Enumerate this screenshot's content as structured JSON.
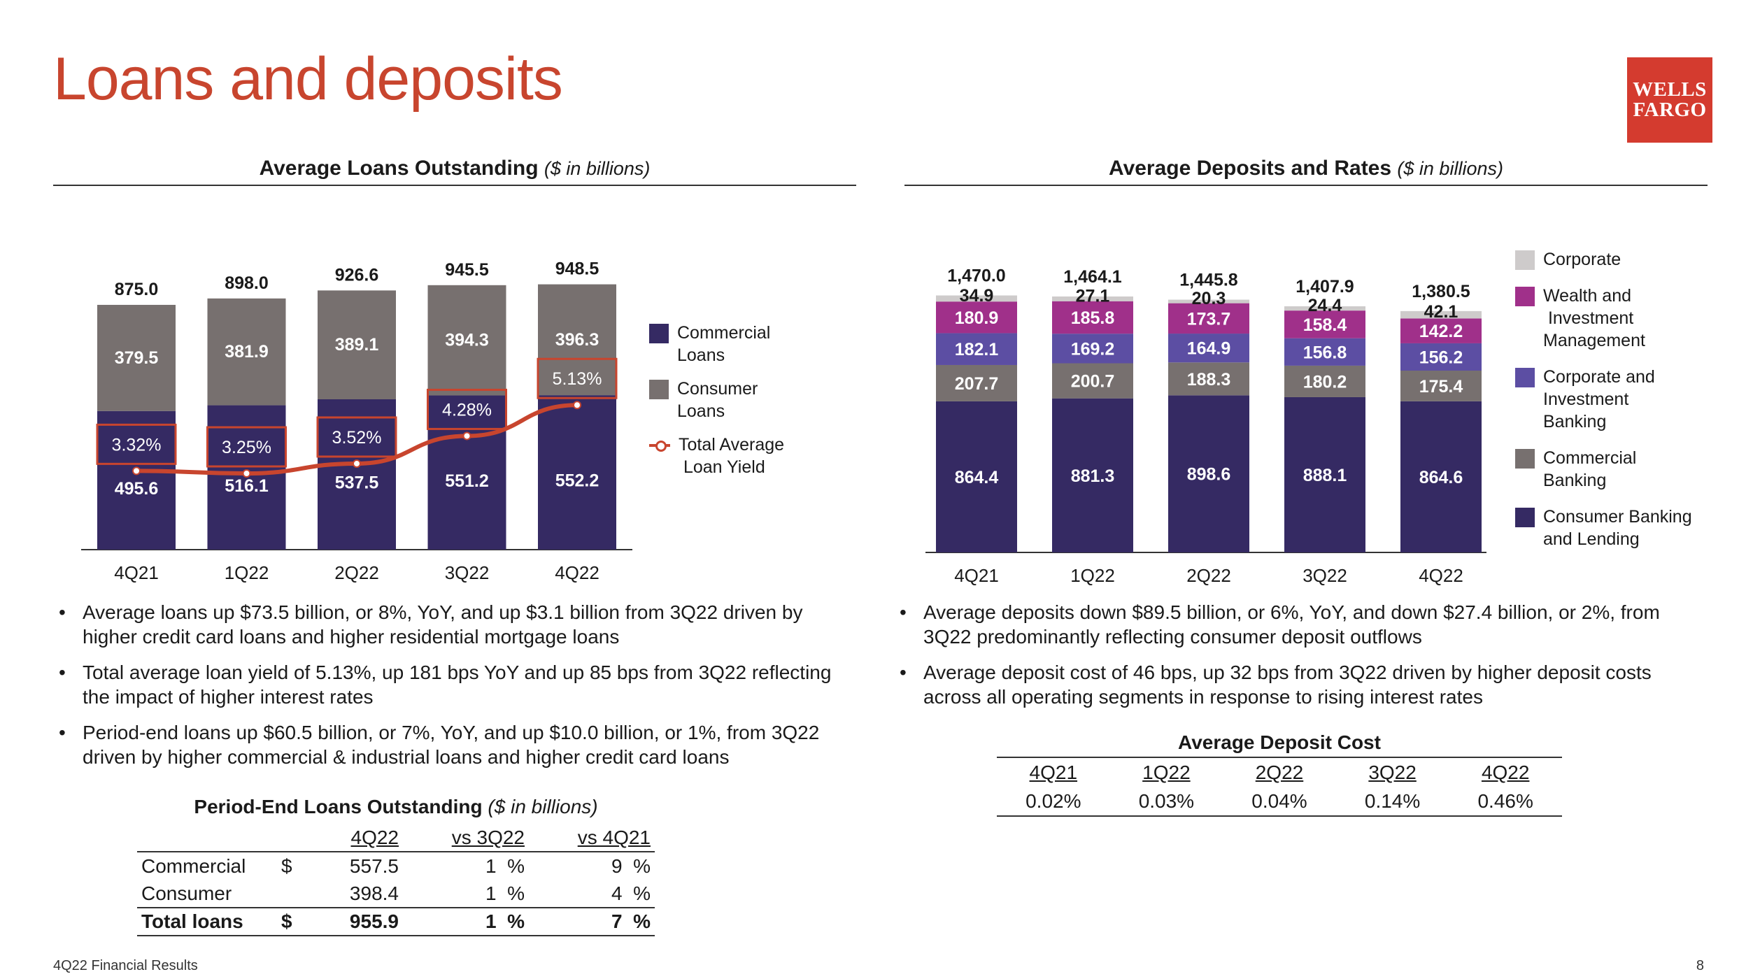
{
  "title": "Loans and deposits",
  "logo": {
    "line1": "WELLS",
    "line2": "FARGO"
  },
  "colors": {
    "accent": "#c8452e",
    "logo_red": "#d43b2f",
    "commercial": "#352a63",
    "consumer": "#77706f",
    "corporate": "#cecbcb",
    "wealth": "#a0308a",
    "cib": "#5c4ea3",
    "commercial_banking": "#77706f",
    "consumer_banking": "#352a63"
  },
  "loans_chart": {
    "heading": "Average Loans Outstanding",
    "unit": "($ in billions)"
  },
  "deposits_chart": {
    "heading": "Average Deposits and Rates",
    "unit": "($ in billions)"
  },
  "chart_data": [
    {
      "type": "bar",
      "stacked": true,
      "title": "Average Loans Outstanding ($ in billions)",
      "categories": [
        "4Q21",
        "1Q22",
        "2Q22",
        "3Q22",
        "4Q22"
      ],
      "totals": [
        "875.0",
        "898.0",
        "926.6",
        "945.5",
        "948.5"
      ],
      "series": [
        {
          "name": "Commercial Loans",
          "values": [
            495.6,
            516.1,
            537.5,
            551.2,
            552.2
          ],
          "labels": [
            "495.6",
            "516.1",
            "537.5",
            "551.2",
            "552.2"
          ]
        },
        {
          "name": "Consumer Loans",
          "values": [
            379.5,
            381.9,
            389.1,
            394.3,
            396.3
          ],
          "labels": [
            "379.5",
            "381.9",
            "389.1",
            "394.3",
            "396.3"
          ]
        }
      ],
      "line": {
        "name": "Total Average Loan Yield",
        "values": [
          3.32,
          3.25,
          3.52,
          4.28,
          5.13
        ],
        "labels": [
          "3.32%",
          "3.25%",
          "3.52%",
          "4.28%",
          "5.13%"
        ]
      },
      "legend": [
        {
          "lines": [
            "Commercial",
            "Loans"
          ]
        },
        {
          "lines": [
            "Consumer",
            "Loans"
          ]
        },
        {
          "lines": [
            "Total Average",
            " Loan Yield"
          ]
        }
      ],
      "ylim": [
        0,
        1000
      ],
      "legend_position": "right"
    },
    {
      "type": "bar",
      "stacked": true,
      "title": "Average Deposits and Rates ($ in billions)",
      "categories": [
        "4Q21",
        "1Q22",
        "2Q22",
        "3Q22",
        "4Q22"
      ],
      "totals": [
        "1,470.0",
        "1,464.1",
        "1,445.8",
        "1,407.9",
        "1,380.5"
      ],
      "series": [
        {
          "name": "Consumer Banking and Lending",
          "values": [
            864.4,
            881.3,
            898.6,
            888.1,
            864.6
          ],
          "labels": [
            "864.4",
            "881.3",
            "898.6",
            "888.1",
            "864.6"
          ]
        },
        {
          "name": "Commercial Banking",
          "values": [
            207.7,
            200.7,
            188.3,
            180.2,
            175.4
          ],
          "labels": [
            "207.7",
            "200.7",
            "188.3",
            "180.2",
            "175.4"
          ]
        },
        {
          "name": "Corporate and Investment Banking",
          "values": [
            182.1,
            169.2,
            164.9,
            156.8,
            156.2
          ],
          "labels": [
            "182.1",
            "169.2",
            "164.9",
            "156.8",
            "156.2"
          ]
        },
        {
          "name": "Wealth and Investment Management",
          "values": [
            180.9,
            185.8,
            173.7,
            158.4,
            142.2
          ],
          "labels": [
            "180.9",
            "185.8",
            "173.7",
            "158.4",
            "142.2"
          ]
        },
        {
          "name": "Corporate",
          "values": [
            34.9,
            27.1,
            20.3,
            24.4,
            42.1
          ],
          "labels": [
            "34.9",
            "27.1",
            "20.3",
            "24.4",
            "42.1"
          ]
        }
      ],
      "legend": [
        {
          "lines": [
            "Corporate"
          ]
        },
        {
          "lines": [
            "Wealth and",
            " Investment",
            "Management"
          ]
        },
        {
          "lines": [
            "Corporate and",
            "Investment",
            "Banking"
          ]
        },
        {
          "lines": [
            "Commercial",
            "Banking"
          ]
        },
        {
          "lines": [
            "Consumer Banking",
            "and Lending"
          ]
        }
      ],
      "ylim": [
        0,
        1550
      ],
      "legend_position": "right"
    }
  ],
  "loans_bullets": [
    "Average loans up $73.5 billion, or 8%, YoY, and up $3.1 billion from 3Q22 driven by higher credit card loans and higher residential mortgage loans",
    "Total average loan yield of 5.13%, up 181 bps YoY and up 85 bps from 3Q22 reflecting the impact of higher interest rates",
    "Period-end loans up $60.5 billion, or 7%, YoY, and up $10.0 billion, or 1%, from 3Q22 driven by higher commercial & industrial loans and higher credit card loans"
  ],
  "deposits_bullets": [
    "Average deposits down $89.5 billion, or 6%, YoY, and down $27.4 billion, or 2%, from 3Q22 predominantly reflecting consumer deposit outflows",
    "Average deposit cost of 46 bps, up 32 bps from 3Q22 driven by higher deposit costs across all operating segments in response to rising interest rates"
  ],
  "period_end_table": {
    "title": "Period-End Loans Outstanding",
    "unit": "($ in billions)",
    "headers": {
      "col1": "4Q22",
      "col2": "vs 3Q22",
      "col3": "vs 4Q21"
    },
    "rows": [
      {
        "label": "Commercial",
        "currency": "$",
        "value": "557.5",
        "vs3q": "1",
        "vs3q_pct": "%",
        "vs4q": "9",
        "vs4q_pct": "%"
      },
      {
        "label": "Consumer",
        "currency": "",
        "value": "398.4",
        "vs3q": "1",
        "vs3q_pct": "%",
        "vs4q": "4",
        "vs4q_pct": "%"
      },
      {
        "label": "Total loans",
        "currency": "$",
        "value": "955.9",
        "vs3q": "1",
        "vs3q_pct": "%",
        "vs4q": "7",
        "vs4q_pct": "%"
      }
    ]
  },
  "deposit_cost_table": {
    "title": "Average Deposit Cost",
    "quarters": [
      "4Q21",
      "1Q22",
      "2Q22",
      "3Q22",
      "4Q22"
    ],
    "values": [
      "0.02%",
      "0.03%",
      "0.04%",
      "0.14%",
      "0.46%"
    ]
  },
  "footer": {
    "left": "4Q22 Financial Results",
    "page": "8"
  }
}
